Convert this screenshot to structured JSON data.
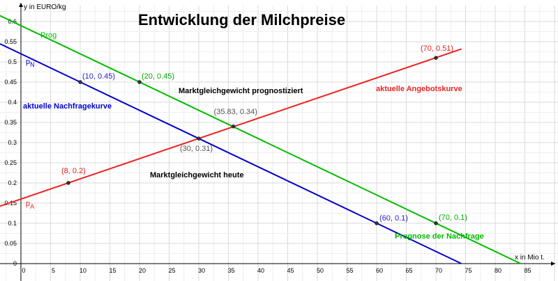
{
  "chart_data": {
    "type": "line",
    "title": "Entwicklung der Milchpreise",
    "xlabel": "x in Mio t.",
    "ylabel": "y in  EURO/kg",
    "xlim": [
      -1.5,
      90
    ],
    "ylim": [
      0,
      0.63
    ],
    "x_ticks": [
      0,
      5,
      10,
      15,
      20,
      25,
      30,
      35,
      40,
      45,
      50,
      55,
      60,
      65,
      70,
      75,
      80,
      85
    ],
    "x_tick_labels": [
      "0",
      "5",
      "10",
      "15",
      "20",
      "25",
      "30",
      "35",
      "40",
      "45",
      "50",
      "55",
      "60",
      "65",
      "70",
      "75",
      "80",
      "85"
    ],
    "y_ticks": [
      0,
      0.05,
      0.1,
      0.15,
      0.2,
      0.25,
      0.3,
      0.35,
      0.4,
      0.45,
      0.5,
      0.55,
      0.6
    ],
    "y_tick_labels": [
      "0",
      "0.05",
      "0.1",
      "0.15",
      "0.2",
      "0.25",
      "0.3",
      "0.35",
      "0.4",
      "0.45",
      "0.5",
      "0.55",
      "0.6"
    ],
    "grid": true,
    "series": [
      {
        "name": "aktuelle Nachfragekurve",
        "color": "#0000cc",
        "x": [
          0,
          74.3
        ],
        "y": [
          0.52,
          0
        ],
        "label": "pN",
        "label_main": "p",
        "label_sub": "N"
      },
      {
        "name": "Prognose der Nachfrage",
        "color": "#00bb00",
        "x": [
          0,
          84.3
        ],
        "y": [
          0.59,
          0
        ],
        "label": "Prog"
      },
      {
        "name": "aktuelle Angebotskurve",
        "color": "#ee2222",
        "x": [
          0,
          74.3
        ],
        "y": [
          0.16,
          0.532
        ],
        "label": "pA",
        "label_main": "p",
        "label_sub": "A"
      }
    ],
    "points": [
      {
        "x": 10,
        "y": 0.45,
        "label": "(10, 0.45)",
        "color": "#2222cc"
      },
      {
        "x": 60,
        "y": 0.1,
        "label": "(60, 0.1)",
        "color": "#2222cc"
      },
      {
        "x": 20,
        "y": 0.45,
        "label": "(20, 0.45)",
        "color": "#00aa00"
      },
      {
        "x": 70,
        "y": 0.1,
        "label": "(70, 0.1)",
        "color": "#00aa00"
      },
      {
        "x": 8,
        "y": 0.2,
        "label": "(8, 0.2)",
        "color": "#dd2222"
      },
      {
        "x": 70,
        "y": 0.51,
        "label": "(70, 0.51)",
        "color": "#dd2222"
      },
      {
        "x": 30,
        "y": 0.31,
        "label": "(30, 0.31)",
        "color": "#555555"
      },
      {
        "x": 35.83,
        "y": 0.34,
        "label": "(35.83, 0.34)",
        "color": "#555555"
      }
    ],
    "annotations": [
      {
        "text": "Marktgleichgewicht prognostiziert",
        "color": "#000000"
      },
      {
        "text": "Marktgleichgewicht heute",
        "color": "#000000"
      },
      {
        "text": "aktuelle Nachfragekurve",
        "color": "#0000cc"
      },
      {
        "text": "aktuelle Angebotskurve",
        "color": "#ee2222"
      },
      {
        "text": "Prognose der Nachfrage",
        "color": "#00bb00"
      }
    ]
  }
}
